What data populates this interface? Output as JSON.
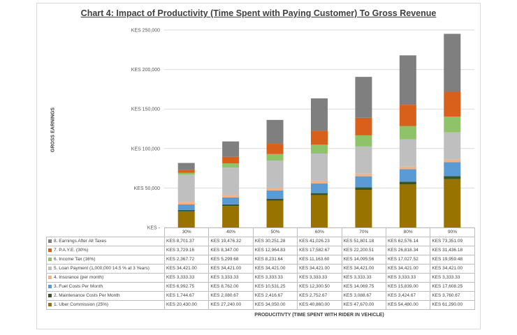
{
  "chart_data": {
    "type": "bar",
    "stacked": true,
    "title": "Chart 4: Impact of Productivity (Time Spent with Paying Customer) To Gross Revenue",
    "ylabel": "GROSS EARNINGS",
    "xlabel": "PRODUCITIVTY (TIME SPENT WITH RIDER IN VEHICLE)",
    "categories": [
      "30%",
      "40%",
      "50%",
      "60%",
      "70%",
      "80%",
      "90%"
    ],
    "ylim": [
      0,
      250000
    ],
    "yticks": [
      0,
      50000,
      100000,
      150000,
      200000,
      250000
    ],
    "ytick_labels": [
      "KES -",
      "KES 50,000",
      "KES 100,000",
      "KES 150,000",
      "KES 200,000",
      "KES 250,000"
    ],
    "grid": true,
    "series": [
      {
        "name": "1. Uber Commission (25%)",
        "color": "#997300",
        "values": [
          20430,
          27240,
          34050,
          40860,
          47670,
          54480,
          61290
        ],
        "labels": [
          "KES 20,430.00",
          "KES 27,240.00",
          "KES 34,050.00",
          "KES 40,860.00",
          "KES 47,670.00",
          "KES 54,480.00",
          "KES 61,290.00"
        ]
      },
      {
        "name": "2. Maintenance Costs Per Month",
        "color": "#375623",
        "values": [
          1744.67,
          2080.67,
          2416.67,
          2752.67,
          3088.67,
          3424.67,
          3760.67
        ],
        "labels": [
          "KES 1,744.67",
          "KES 2,080.67",
          "KES 2,416.67",
          "KES 2,752.67",
          "KES 3,088.67",
          "KES 3,424.67",
          "KES 3,760.67"
        ]
      },
      {
        "name": "3. Fuel Costs Per Month",
        "color": "#5b9bd5",
        "values": [
          6992.75,
          8762,
          10531.25,
          12300.5,
          14069.75,
          15839,
          17608.25
        ],
        "labels": [
          "KES 6,992.75",
          "KES 8,762.00",
          "KES 10,531.25",
          "KES 12,300.50",
          "KES 14,069.75",
          "KES 15,839.00",
          "KES 17,608.25"
        ]
      },
      {
        "name": "4. Insurance (per month)",
        "color": "#f4b183",
        "values": [
          3333.33,
          3333.33,
          3333.33,
          3333.33,
          3333.33,
          3333.33,
          3333.33
        ],
        "labels": [
          "KES 3,333.33",
          "KES 3,333.33",
          "KES 3,333.33",
          "KES 3,333.33",
          "KES 3,333.33",
          "KES 3,333.33",
          "KES 3,333.33"
        ]
      },
      {
        "name": "5. Loan Payment (1,000,000 14.5 % at 3 Years)",
        "color": "#bfbfbf",
        "values": [
          34421,
          34421,
          34421,
          34421,
          34421,
          34421,
          34421
        ],
        "labels": [
          "KES 34,421.00",
          "KES 34,421.00",
          "KES 34,421.00",
          "KES 34,421.00",
          "KES 34,421.00",
          "KES 34,421.00",
          "KES 34,421.00"
        ]
      },
      {
        "name": "6. Income Tax (16%)",
        "color": "#8fc36a",
        "values": [
          2367.72,
          5299.68,
          8231.64,
          11163.6,
          14095.56,
          17027.52,
          19959.48
        ],
        "labels": [
          "KES 2,367.72",
          "KES 5,299.68",
          "KES 8,231.64",
          "KES 11,163.60",
          "KES 14,095.56",
          "KES 17,027.52",
          "KES 19,959.48"
        ]
      },
      {
        "name": "7. P.A.Y.E. (30%)",
        "color": "#d8601a",
        "values": [
          3729.16,
          8347,
          12964.83,
          17582.67,
          22200.51,
          26818.34,
          31436.18
        ],
        "labels": [
          "KES 3,729.16",
          "KES 8,347.00",
          "KES 12,964.83",
          "KES 17,582.67",
          "KES 22,200.51",
          "KES 26,818.34",
          "KES 31,436.18"
        ]
      },
      {
        "name": "8. Earnings After All Taxes",
        "color": "#7f7f7f",
        "values": [
          8701.37,
          19476.32,
          30251.28,
          41026.23,
          51801.18,
          62576.14,
          73351.09
        ],
        "labels": [
          "KES 8,701.37",
          "KES 19,476.32",
          "KES 30,251.28",
          "KES 41,026.23",
          "KES 51,801.18",
          "KES 62,576.14",
          "KES 73,351.09"
        ]
      }
    ]
  }
}
